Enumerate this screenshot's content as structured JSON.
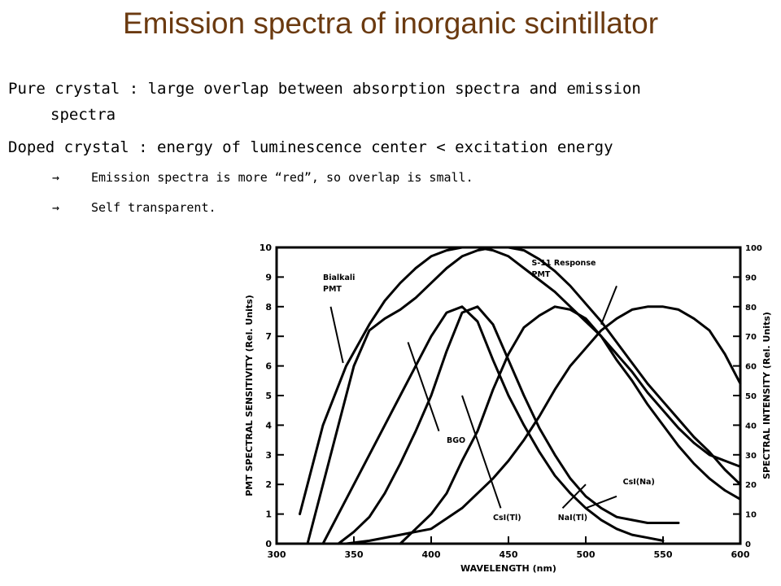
{
  "slide": {
    "title": "Emission spectra of inorganic scintillator",
    "bullet1_line1": "Pure crystal : large overlap between absorption spectra and emission",
    "bullet1_line2": "spectra",
    "bullet2": "Doped crystal : energy of luminescence center < excitation energy",
    "sub_arrow": "→",
    "sub1": "Emission spectra is more “red”, so overlap is small.",
    "sub2": "Self transparent."
  },
  "chart_data": {
    "type": "line",
    "xlabel": "WAVELENGTH (nm)",
    "ylabel_left": "PMT SPECTRAL SENSITIVITY (Rel. Units)",
    "ylabel_right": "SPECTRAL INTENSITY (Rel. Units)",
    "xlim": [
      300,
      600
    ],
    "ylim_left": [
      0,
      10
    ],
    "ylim_right": [
      0,
      100
    ],
    "x_ticks": [
      300,
      350,
      400,
      450,
      500,
      550,
      600
    ],
    "x_tick_labels": [
      "300",
      "350",
      "400",
      "450",
      "500",
      "550",
      "600"
    ],
    "left_ticks": [
      0,
      1,
      2,
      3,
      4,
      5,
      6,
      7,
      8,
      9,
      10
    ],
    "right_ticks": [
      0,
      10,
      20,
      30,
      40,
      50,
      60,
      70,
      80,
      90,
      100
    ],
    "series": [
      {
        "name": "Bialkali PMT",
        "x": [
          315,
          330,
          345,
          360,
          370,
          380,
          390,
          400,
          410,
          420,
          430,
          440,
          450,
          460,
          470,
          480,
          490,
          500,
          510,
          520,
          530,
          540,
          550,
          560,
          570,
          580,
          590,
          600
        ],
        "y": [
          1.0,
          4.0,
          6.0,
          7.4,
          8.2,
          8.8,
          9.3,
          9.7,
          9.9,
          10.0,
          10.0,
          9.9,
          9.7,
          9.3,
          8.9,
          8.5,
          8.0,
          7.5,
          7.0,
          6.4,
          5.8,
          5.1,
          4.5,
          3.9,
          3.4,
          3.0,
          2.8,
          2.6
        ]
      },
      {
        "name": "S-11 Response PMT",
        "x": [
          320,
          330,
          340,
          350,
          360,
          370,
          380,
          390,
          400,
          410,
          420,
          430,
          440,
          450,
          460,
          470,
          480,
          490,
          500,
          510,
          520,
          530,
          540,
          550,
          560,
          570,
          580,
          590,
          600
        ],
        "y": [
          0.0,
          2.0,
          4.0,
          6.0,
          7.2,
          7.6,
          7.9,
          8.3,
          8.8,
          9.3,
          9.7,
          9.9,
          10.0,
          10.0,
          9.9,
          9.6,
          9.2,
          8.7,
          8.1,
          7.5,
          6.8,
          6.1,
          5.4,
          4.8,
          4.2,
          3.6,
          3.1,
          2.5,
          2.0
        ]
      },
      {
        "name": "CsI(Tl)",
        "x": [
          340,
          350,
          360,
          370,
          380,
          390,
          400,
          410,
          420,
          430,
          440,
          450,
          460,
          470,
          480,
          490,
          500,
          510,
          520,
          530,
          540,
          550,
          560
        ],
        "y": [
          0,
          4,
          9,
          17,
          27,
          38,
          50,
          65,
          78,
          80,
          74,
          62,
          50,
          39,
          30,
          22,
          16,
          12,
          9,
          8,
          7,
          7,
          7
        ]
      },
      {
        "name": "NaI(Tl)",
        "x": [
          330,
          340,
          350,
          360,
          370,
          380,
          390,
          400,
          410,
          420,
          430,
          440,
          450,
          460,
          470,
          480,
          490,
          500,
          510,
          520,
          530,
          540,
          550
        ],
        "y": [
          0,
          10,
          20,
          30,
          40,
          50,
          60,
          70,
          78,
          80,
          75,
          62,
          50,
          40,
          31,
          23,
          17,
          12,
          8,
          5,
          3,
          2,
          1
        ]
      },
      {
        "name": "BGO",
        "x": [
          380,
          390,
          400,
          410,
          420,
          430,
          440,
          450,
          460,
          470,
          480,
          490,
          500,
          510,
          520,
          530,
          540,
          550,
          560,
          570,
          580,
          590,
          600
        ],
        "y": [
          0,
          5,
          10,
          17,
          28,
          38,
          52,
          64,
          73,
          77,
          80,
          79,
          76,
          70,
          62,
          55,
          47,
          40,
          33,
          27,
          22,
          18,
          15
        ]
      },
      {
        "name": "CsI(Na)",
        "x": [
          345,
          360,
          380,
          400,
          420,
          440,
          450,
          460,
          470,
          480,
          490,
          500,
          510,
          520,
          530,
          540,
          550,
          560,
          570,
          580,
          590,
          600
        ],
        "y": [
          0,
          1,
          3,
          5,
          12,
          22,
          28,
          35,
          43,
          52,
          60,
          66,
          72,
          76,
          79,
          80,
          80,
          79,
          76,
          72,
          64,
          54
        ]
      }
    ],
    "annotations": [
      "Bialkali PMT",
      "S-11 Response PMT",
      "CsI(Tl)",
      "NaI(Tl)",
      "BGO",
      "CsI(Na)"
    ]
  }
}
